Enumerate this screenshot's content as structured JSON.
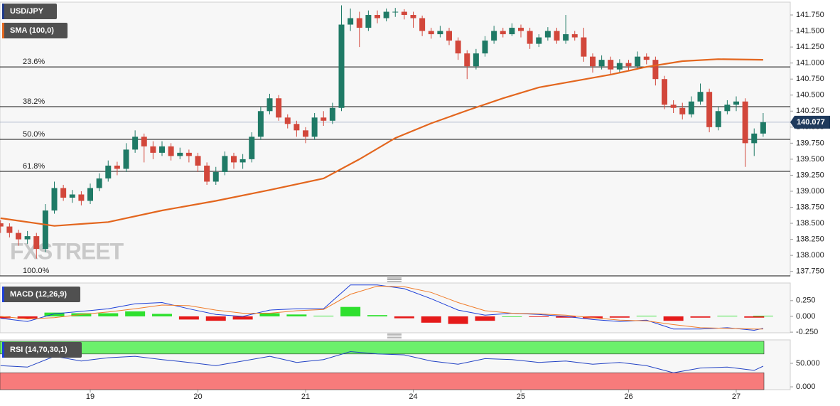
{
  "chart_data": [
    {
      "type": "candlestick",
      "title": "USD/JPY",
      "watermark": "FXSTREET",
      "categories": [
        null,
        null,
        null,
        null,
        null,
        null,
        null,
        null,
        null,
        null,
        "19",
        null,
        null,
        null,
        null,
        null,
        null,
        null,
        null,
        null,
        null,
        null,
        "20",
        null,
        null,
        null,
        null,
        null,
        null,
        null,
        null,
        null,
        null,
        null,
        "21",
        null,
        null,
        null,
        null,
        null,
        null,
        null,
        null,
        null,
        null,
        null,
        "24",
        null,
        null,
        null,
        null,
        null,
        null,
        null,
        null,
        null,
        null,
        null,
        "25",
        null,
        null,
        null,
        null,
        null,
        null,
        null,
        null,
        null,
        null,
        null,
        "26",
        null,
        null,
        null,
        null,
        null,
        null,
        null,
        null,
        null,
        null,
        null,
        "27",
        null,
        null,
        null
      ],
      "xlim": [
        -0.06,
        88.02
      ],
      "candles": [
        [
          138.5,
          138.55,
          138.35,
          138.45
        ],
        [
          138.45,
          138.5,
          138.28,
          138.35
        ],
        [
          138.35,
          138.4,
          138.15,
          138.25
        ],
        [
          138.25,
          138.38,
          138.18,
          138.3
        ],
        [
          138.3,
          138.35,
          137.95,
          138.1
        ],
        [
          138.1,
          138.8,
          138.05,
          138.7
        ],
        [
          138.7,
          139.15,
          138.65,
          139.05
        ],
        [
          139.05,
          139.1,
          138.85,
          138.9
        ],
        [
          138.9,
          139.02,
          138.82,
          138.95
        ],
        [
          138.95,
          139.0,
          138.78,
          138.85
        ],
        [
          138.85,
          139.12,
          138.8,
          139.05
        ],
        [
          139.05,
          139.28,
          139.0,
          139.2
        ],
        [
          139.2,
          139.48,
          139.15,
          139.4
        ],
        [
          139.4,
          139.46,
          139.25,
          139.35
        ],
        [
          139.35,
          139.75,
          139.3,
          139.65
        ],
        [
          139.65,
          139.95,
          139.6,
          139.85
        ],
        [
          139.85,
          139.9,
          139.45,
          139.7
        ],
        [
          139.7,
          139.78,
          139.5,
          139.6
        ],
        [
          139.6,
          139.78,
          139.55,
          139.7
        ],
        [
          139.7,
          139.75,
          139.48,
          139.55
        ],
        [
          139.55,
          139.68,
          139.5,
          139.6
        ],
        [
          139.6,
          139.65,
          139.45,
          139.55
        ],
        [
          139.55,
          139.6,
          139.3,
          139.4
        ],
        [
          139.4,
          139.45,
          139.1,
          139.15
        ],
        [
          139.15,
          139.38,
          139.1,
          139.3
        ],
        [
          139.3,
          139.62,
          139.25,
          139.55
        ],
        [
          139.55,
          139.6,
          139.35,
          139.45
        ],
        [
          139.45,
          139.58,
          139.35,
          139.5
        ],
        [
          139.5,
          139.92,
          139.45,
          139.85
        ],
        [
          139.85,
          140.32,
          139.8,
          140.25
        ],
        [
          140.25,
          140.52,
          140.2,
          140.45
        ],
        [
          140.45,
          140.5,
          140.1,
          140.15
        ],
        [
          140.15,
          140.2,
          139.98,
          140.05
        ],
        [
          140.05,
          140.1,
          139.85,
          139.95
        ],
        [
          139.95,
          140.0,
          139.75,
          139.85
        ],
        [
          139.85,
          140.22,
          139.8,
          140.15
        ],
        [
          140.15,
          140.25,
          140.02,
          140.1
        ],
        [
          140.1,
          140.38,
          140.05,
          140.3
        ],
        [
          140.3,
          141.9,
          140.25,
          141.6
        ],
        [
          141.6,
          141.85,
          141.5,
          141.7
        ],
        [
          141.7,
          141.8,
          141.25,
          141.55
        ],
        [
          141.55,
          141.82,
          141.5,
          141.75
        ],
        [
          141.75,
          141.82,
          141.62,
          141.7
        ],
        [
          141.7,
          141.85,
          141.65,
          141.8
        ],
        [
          141.8,
          141.86,
          141.72,
          141.8
        ],
        [
          141.8,
          141.84,
          141.68,
          141.75
        ],
        [
          141.75,
          141.8,
          141.55,
          141.7
        ],
        [
          141.7,
          141.74,
          141.42,
          141.5
        ],
        [
          141.5,
          141.55,
          141.38,
          141.45
        ],
        [
          141.45,
          141.58,
          141.4,
          141.5
        ],
        [
          141.5,
          141.55,
          141.28,
          141.35
        ],
        [
          141.35,
          141.4,
          141.05,
          141.15
        ],
        [
          141.15,
          141.2,
          140.75,
          140.95
        ],
        [
          140.95,
          141.22,
          140.9,
          141.15
        ],
        [
          141.15,
          141.42,
          141.1,
          141.35
        ],
        [
          141.35,
          141.58,
          141.3,
          141.5
        ],
        [
          141.5,
          141.55,
          141.4,
          141.45
        ],
        [
          141.45,
          141.62,
          141.42,
          141.55
        ],
        [
          141.55,
          141.6,
          141.4,
          141.5
        ],
        [
          141.5,
          141.55,
          141.22,
          141.3
        ],
        [
          141.3,
          141.45,
          141.25,
          141.4
        ],
        [
          141.4,
          141.56,
          141.35,
          141.5
        ],
        [
          141.5,
          141.55,
          141.3,
          141.35
        ],
        [
          141.35,
          141.75,
          141.3,
          141.45
        ],
        [
          141.45,
          141.5,
          141.35,
          141.4
        ],
        [
          141.4,
          141.55,
          141.02,
          141.1
        ],
        [
          141.1,
          141.15,
          140.85,
          140.95
        ],
        [
          140.95,
          141.12,
          140.9,
          141.05
        ],
        [
          141.05,
          141.1,
          140.82,
          140.9
        ],
        [
          140.9,
          141.06,
          140.85,
          141.0
        ],
        [
          141.0,
          141.05,
          140.88,
          140.95
        ],
        [
          140.95,
          141.18,
          140.9,
          141.1
        ],
        [
          141.1,
          141.15,
          140.98,
          141.05
        ],
        [
          141.05,
          141.1,
          140.65,
          140.75
        ],
        [
          140.75,
          140.8,
          140.28,
          140.35
        ],
        [
          140.35,
          140.42,
          140.22,
          140.3
        ],
        [
          140.3,
          140.38,
          140.12,
          140.2
        ],
        [
          140.2,
          140.48,
          140.15,
          140.4
        ],
        [
          140.4,
          140.68,
          140.35,
          140.55
        ],
        [
          140.55,
          140.6,
          139.92,
          140.0
        ],
        [
          140.0,
          140.32,
          139.95,
          140.25
        ],
        [
          140.25,
          140.42,
          140.2,
          140.35
        ],
        [
          140.35,
          140.48,
          140.25,
          140.4
        ],
        [
          140.4,
          140.45,
          139.38,
          139.75
        ],
        [
          139.75,
          139.98,
          139.55,
          139.9
        ],
        [
          139.9,
          140.22,
          139.85,
          140.077
        ]
      ],
      "color_up": "#1f7a66",
      "color_down": "#d2473b",
      "ylim": [
        137.68,
        141.95
      ],
      "yticks": [
        {
          "value": 137.75,
          "label": "137.750"
        },
        {
          "value": 138.0,
          "label": "138.000"
        },
        {
          "value": 138.25,
          "label": "138.250"
        },
        {
          "value": 138.5,
          "label": "138.500"
        },
        {
          "value": 138.75,
          "label": "138.750"
        },
        {
          "value": 139.0,
          "label": "139.000"
        },
        {
          "value": 139.25,
          "label": "139.250"
        },
        {
          "value": 139.5,
          "label": "139.500"
        },
        {
          "value": 139.75,
          "label": "139.750"
        },
        {
          "value": 140.0,
          "label": "140.000"
        },
        {
          "value": 140.25,
          "label": "140.250"
        },
        {
          "value": 140.5,
          "label": "140.500"
        },
        {
          "value": 140.75,
          "label": "140.750"
        },
        {
          "value": 141.0,
          "label": "141.000"
        },
        {
          "value": 141.25,
          "label": "141.250"
        },
        {
          "value": 141.5,
          "label": "141.500"
        },
        {
          "value": 141.75,
          "label": "141.750"
        }
      ],
      "sma": {
        "name": "SMA (100,0)",
        "color": "#e3661e",
        "x": [
          0,
          6,
          12,
          18,
          24,
          30,
          36,
          40,
          44,
          48,
          52,
          56,
          60,
          64,
          68,
          72,
          76,
          80,
          85
        ],
        "values": [
          138.58,
          138.46,
          138.52,
          138.7,
          138.85,
          139.02,
          139.2,
          139.5,
          139.83,
          140.06,
          140.26,
          140.45,
          140.62,
          140.72,
          140.82,
          140.94,
          141.03,
          141.06,
          141.05
        ]
      },
      "levels": [
        {
          "label": "23.6%",
          "value": 140.94
        },
        {
          "label": "38.2%",
          "value": 140.32
        },
        {
          "label": "50.0%",
          "value": 139.81
        },
        {
          "label": "61.8%",
          "value": 139.31
        },
        {
          "label": "100.0%",
          "value": 137.68
        }
      ],
      "last_price": 140.077
    },
    {
      "type": "macd",
      "title": "MACD (12,26,9)",
      "x": [
        0,
        3,
        6,
        9,
        12,
        15,
        18,
        21,
        24,
        27,
        30,
        33,
        36,
        39,
        42,
        45,
        48,
        51,
        54,
        57,
        60,
        63,
        66,
        69,
        72,
        75,
        78,
        81,
        84,
        85
      ],
      "series": [
        {
          "color": "#1d3fd8",
          "values": [
            -0.03,
            -0.08,
            0.04,
            0.08,
            0.12,
            0.2,
            0.22,
            0.12,
            0.03,
            0.0,
            0.1,
            0.12,
            0.12,
            0.5,
            0.5,
            0.44,
            0.28,
            0.1,
            0.02,
            0.05,
            0.03,
            0.0,
            -0.05,
            -0.08,
            -0.06,
            -0.2,
            -0.2,
            -0.18,
            -0.22,
            -0.19
          ]
        },
        {
          "color": "#f07c2a",
          "values": [
            0.0,
            -0.04,
            -0.02,
            0.03,
            0.07,
            0.12,
            0.18,
            0.17,
            0.1,
            0.05,
            0.05,
            0.09,
            0.11,
            0.35,
            0.48,
            0.47,
            0.38,
            0.22,
            0.09,
            0.05,
            0.04,
            0.02,
            -0.02,
            -0.06,
            -0.07,
            -0.13,
            -0.18,
            -0.19,
            -0.2,
            -0.2
          ]
        }
      ],
      "histogram": {
        "color_up": "#2ee02e",
        "color_down": "#e51a1a",
        "values": [
          -0.03,
          -0.04,
          0.06,
          0.05,
          0.05,
          0.08,
          0.04,
          -0.05,
          -0.07,
          -0.05,
          0.05,
          0.03,
          0.01,
          0.15,
          0.02,
          -0.03,
          -0.1,
          -0.12,
          -0.07,
          0.0,
          -0.01,
          -0.02,
          -0.03,
          -0.02,
          0.01,
          -0.07,
          -0.02,
          0.01,
          -0.02,
          0.01
        ]
      },
      "ylim": [
        -0.26,
        0.53
      ],
      "yticks": [
        {
          "value": 0.25,
          "label": "0.250"
        },
        {
          "value": 0,
          "label": "0.000"
        },
        {
          "value": -0.25,
          "label": "-0.250"
        }
      ]
    },
    {
      "type": "rsi",
      "title": "RSI (14,70,30,1)",
      "x": [
        0,
        3,
        6,
        9,
        12,
        15,
        18,
        21,
        24,
        27,
        30,
        33,
        36,
        39,
        42,
        45,
        48,
        51,
        54,
        57,
        60,
        63,
        66,
        69,
        72,
        75,
        78,
        81,
        84,
        85
      ],
      "color": "#2242c4",
      "values": [
        45,
        42,
        65,
        55,
        62,
        65,
        58,
        52,
        45,
        55,
        65,
        52,
        58,
        75,
        70,
        68,
        55,
        48,
        60,
        58,
        52,
        55,
        48,
        52,
        45,
        30,
        40,
        42,
        35,
        44
      ],
      "overbought": {
        "range": [
          70,
          97
        ],
        "color": "#6cf06c"
      },
      "oversold": {
        "range": [
          -6,
          30
        ],
        "color": "#f77b7b"
      },
      "ylim": [
        -6,
        100
      ],
      "yticks": [
        {
          "value": 50,
          "label": "50.000"
        },
        {
          "value": 0,
          "label": "0.000"
        }
      ]
    }
  ]
}
